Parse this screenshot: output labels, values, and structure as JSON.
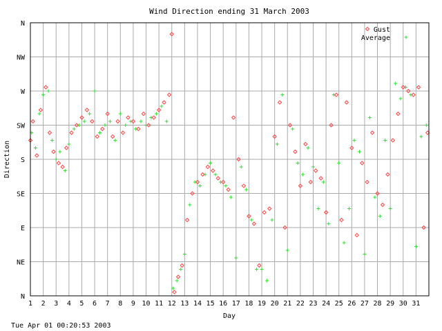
{
  "chart_data": {
    "type": "scatter",
    "title": "Wind Direction ending 31 March 2003",
    "xlabel": "Day",
    "ylabel": "Direction",
    "footer": "Tue Apr 01 00:20:53 2003",
    "x_ticks": [
      "1",
      "2",
      "3",
      "4",
      "5",
      "6",
      "7",
      "8",
      "9",
      "10",
      "11",
      "12",
      "13",
      "14",
      "15",
      "16",
      "17",
      "18",
      "19",
      "20",
      "21",
      "22",
      "23",
      "24",
      "25",
      "26",
      "27",
      "28",
      "29",
      "30",
      "31"
    ],
    "y_ticks": [
      "N",
      "NE",
      "E",
      "SE",
      "S",
      "SW",
      "W",
      "NW",
      "N"
    ],
    "xlim": [
      1,
      32
    ],
    "ylim": [
      0,
      360
    ],
    "grid": true,
    "legend_position": "top-right",
    "colors": {
      "gust": "#ff4444",
      "average": "#33dd33",
      "grid": "#aaaaaa",
      "frame": "#000000"
    },
    "series": [
      {
        "name": "Gust",
        "marker": "diamond",
        "x": [
          1.0,
          1.2,
          1.5,
          1.8,
          2.2,
          2.5,
          2.8,
          3.2,
          3.5,
          3.8,
          4.2,
          4.6,
          5.0,
          5.4,
          5.8,
          6.2,
          6.6,
          7.0,
          7.4,
          7.8,
          8.2,
          8.6,
          9.0,
          9.4,
          9.8,
          10.2,
          10.6,
          11.0,
          11.4,
          11.8,
          12.0,
          12.2,
          12.5,
          12.8,
          13.2,
          13.6,
          14.0,
          14.4,
          14.8,
          15.2,
          15.6,
          16.0,
          16.4,
          16.8,
          17.2,
          17.6,
          18.0,
          18.4,
          18.8,
          19.2,
          19.6,
          20.0,
          20.4,
          20.8,
          21.2,
          21.6,
          22.0,
          22.4,
          22.8,
          23.2,
          23.6,
          24.0,
          24.4,
          24.8,
          25.2,
          25.6,
          26.0,
          26.4,
          26.8,
          27.2,
          27.6,
          28.0,
          28.4,
          28.8,
          29.2,
          29.6,
          30.0,
          30.4,
          30.8,
          31.2,
          31.6,
          31.9
        ],
        "y": [
          205,
          230,
          185,
          245,
          275,
          215,
          190,
          175,
          170,
          195,
          215,
          225,
          235,
          245,
          230,
          210,
          220,
          240,
          210,
          230,
          215,
          235,
          230,
          220,
          240,
          225,
          235,
          245,
          255,
          265,
          345,
          5,
          25,
          40,
          100,
          135,
          150,
          160,
          170,
          165,
          155,
          150,
          140,
          235,
          180,
          145,
          105,
          95,
          40,
          110,
          115,
          210,
          255,
          90,
          225,
          190,
          145,
          200,
          150,
          165,
          155,
          110,
          225,
          265,
          100,
          255,
          195,
          80,
          175,
          150,
          215,
          135,
          120,
          160,
          205,
          240,
          275,
          270,
          265,
          275,
          90,
          215
        ]
      },
      {
        "name": "Average",
        "marker": "plus",
        "x": [
          1.1,
          1.4,
          1.7,
          2.0,
          2.4,
          2.7,
          3.0,
          3.3,
          3.7,
          4.0,
          4.4,
          4.8,
          5.2,
          5.6,
          6.0,
          6.4,
          6.8,
          7.2,
          7.6,
          8.0,
          8.4,
          8.8,
          9.2,
          9.6,
          10.0,
          10.4,
          10.8,
          11.2,
          11.6,
          12.1,
          12.4,
          12.7,
          13.0,
          13.4,
          13.8,
          14.2,
          14.6,
          15.0,
          15.4,
          15.8,
          16.2,
          16.6,
          17.0,
          17.4,
          17.8,
          18.2,
          18.6,
          19.0,
          19.4,
          19.8,
          20.2,
          20.6,
          21.0,
          21.4,
          21.8,
          22.2,
          22.6,
          23.0,
          23.4,
          23.8,
          24.2,
          24.6,
          25.0,
          25.4,
          25.8,
          26.2,
          26.6,
          27.0,
          27.4,
          27.8,
          28.2,
          28.6,
          29.0,
          29.4,
          29.8,
          30.2,
          30.6,
          31.0,
          31.4,
          31.8
        ],
        "y": [
          215,
          195,
          240,
          265,
          270,
          205,
          180,
          190,
          165,
          200,
          220,
          225,
          230,
          240,
          270,
          215,
          225,
          230,
          205,
          240,
          225,
          230,
          220,
          230,
          225,
          235,
          240,
          250,
          230,
          10,
          20,
          35,
          55,
          120,
          150,
          145,
          160,
          175,
          160,
          150,
          145,
          130,
          50,
          170,
          140,
          100,
          35,
          35,
          20,
          100,
          200,
          265,
          60,
          220,
          175,
          160,
          195,
          170,
          115,
          150,
          95,
          265,
          175,
          70,
          115,
          205,
          190,
          55,
          235,
          130,
          105,
          205,
          115,
          280,
          260,
          275,
          265,
          65,
          210,
          225
        ]
      }
    ]
  }
}
